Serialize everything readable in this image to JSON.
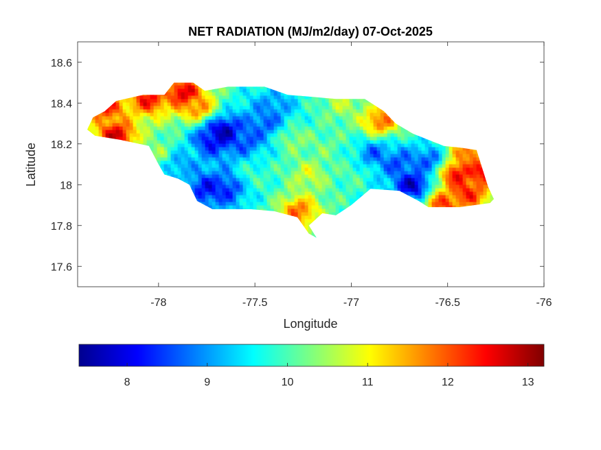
{
  "chart_data": {
    "type": "heatmap",
    "title": "NET RADIATION (MJ/m2/day) 07-Oct-2025",
    "xlabel": "Longitude",
    "ylabel": "Latitude",
    "xlim": [
      -78.42,
      -76.0
    ],
    "ylim": [
      17.5,
      18.7
    ],
    "xticks": [
      -78,
      -77.5,
      -77,
      -76.5,
      -76
    ],
    "xtick_labels": [
      "-78",
      "-77.5",
      "-77",
      "-76.5",
      "-76"
    ],
    "yticks": [
      17.6,
      17.8,
      18.0,
      18.2,
      18.4,
      18.6
    ],
    "ytick_labels": [
      "17.6",
      "17.8",
      "18",
      "18.2",
      "18.4",
      "18.6"
    ],
    "grid": false,
    "colormap": "jet",
    "colorbar": {
      "location": "bottom",
      "limits": [
        7.4,
        13.2
      ],
      "ticks": [
        8,
        9,
        10,
        11,
        12,
        13
      ],
      "tick_labels": [
        "8",
        "9",
        "10",
        "11",
        "12",
        "13"
      ]
    },
    "outline": [
      [
        -78.37,
        18.27
      ],
      [
        -78.34,
        18.33
      ],
      [
        -78.28,
        18.36
      ],
      [
        -78.22,
        18.41
      ],
      [
        -78.08,
        18.44
      ],
      [
        -77.97,
        18.44
      ],
      [
        -77.92,
        18.5
      ],
      [
        -77.82,
        18.5
      ],
      [
        -77.76,
        18.46
      ],
      [
        -77.64,
        18.48
      ],
      [
        -77.45,
        18.48
      ],
      [
        -77.33,
        18.44
      ],
      [
        -77.2,
        18.43
      ],
      [
        -77.08,
        18.42
      ],
      [
        -76.93,
        18.42
      ],
      [
        -76.83,
        18.36
      ],
      [
        -76.77,
        18.3
      ],
      [
        -76.68,
        18.25
      ],
      [
        -76.52,
        18.19
      ],
      [
        -76.42,
        18.18
      ],
      [
        -76.35,
        18.17
      ],
      [
        -76.32,
        18.08
      ],
      [
        -76.29,
        17.99
      ],
      [
        -76.26,
        17.93
      ],
      [
        -76.28,
        17.91
      ],
      [
        -76.44,
        17.89
      ],
      [
        -76.6,
        17.89
      ],
      [
        -76.65,
        17.92
      ],
      [
        -76.75,
        17.97
      ],
      [
        -76.9,
        17.98
      ],
      [
        -77.0,
        17.9
      ],
      [
        -77.08,
        17.85
      ],
      [
        -77.15,
        17.86
      ],
      [
        -77.22,
        17.8
      ],
      [
        -77.18,
        17.74
      ],
      [
        -77.22,
        17.76
      ],
      [
        -77.28,
        17.84
      ],
      [
        -77.4,
        17.87
      ],
      [
        -77.52,
        17.88
      ],
      [
        -77.72,
        17.88
      ],
      [
        -77.8,
        17.92
      ],
      [
        -77.84,
        18.0
      ],
      [
        -77.9,
        18.03
      ],
      [
        -77.97,
        18.05
      ],
      [
        -78.0,
        18.1
      ],
      [
        -78.05,
        18.19
      ],
      [
        -78.2,
        18.22
      ],
      [
        -78.33,
        18.24
      ],
      [
        -78.37,
        18.27
      ]
    ],
    "hotspots": [
      {
        "lon": -78.22,
        "lat": 18.24,
        "value": 12.8
      },
      {
        "lon": -78.27,
        "lat": 18.38,
        "value": 12.3
      },
      {
        "lon": -78.05,
        "lat": 18.42,
        "value": 12.5
      },
      {
        "lon": -77.87,
        "lat": 18.45,
        "value": 12.8
      },
      {
        "lon": -77.8,
        "lat": 18.38,
        "value": 11.8
      },
      {
        "lon": -77.72,
        "lat": 18.22,
        "value": 8.0
      },
      {
        "lon": -77.66,
        "lat": 18.26,
        "value": 7.6
      },
      {
        "lon": -77.75,
        "lat": 17.98,
        "value": 8.1
      },
      {
        "lon": -77.65,
        "lat": 17.98,
        "value": 8.3
      },
      {
        "lon": -77.55,
        "lat": 18.22,
        "value": 8.5
      },
      {
        "lon": -77.45,
        "lat": 18.3,
        "value": 8.6
      },
      {
        "lon": -77.4,
        "lat": 18.38,
        "value": 8.9
      },
      {
        "lon": -77.27,
        "lat": 17.87,
        "value": 11.9
      },
      {
        "lon": -77.22,
        "lat": 18.05,
        "value": 10.8
      },
      {
        "lon": -77.05,
        "lat": 18.4,
        "value": 10.6
      },
      {
        "lon": -76.85,
        "lat": 18.31,
        "value": 11.9
      },
      {
        "lon": -76.88,
        "lat": 18.15,
        "value": 8.7
      },
      {
        "lon": -76.75,
        "lat": 18.1,
        "value": 8.5
      },
      {
        "lon": -76.68,
        "lat": 18.0,
        "value": 7.7
      },
      {
        "lon": -76.6,
        "lat": 18.12,
        "value": 8.6
      },
      {
        "lon": -76.45,
        "lat": 18.05,
        "value": 12.6
      },
      {
        "lon": -76.4,
        "lat": 17.96,
        "value": 12.4
      },
      {
        "lon": -76.52,
        "lat": 17.9,
        "value": 12.2
      },
      {
        "lon": -76.38,
        "lat": 18.16,
        "value": 12.0
      },
      {
        "lon": -76.32,
        "lat": 18.06,
        "value": 12.5
      },
      {
        "lon": -77.5,
        "lat": 18.05,
        "value": 9.9
      },
      {
        "lon": -77.3,
        "lat": 18.22,
        "value": 10.4
      },
      {
        "lon": -77.15,
        "lat": 18.18,
        "value": 10.2
      },
      {
        "lon": -77.0,
        "lat": 18.05,
        "value": 10.0
      },
      {
        "lon": -78.0,
        "lat": 18.15,
        "value": 10.4
      },
      {
        "lon": -77.9,
        "lat": 18.1,
        "value": 9.0
      }
    ],
    "base_value": 9.8
  }
}
